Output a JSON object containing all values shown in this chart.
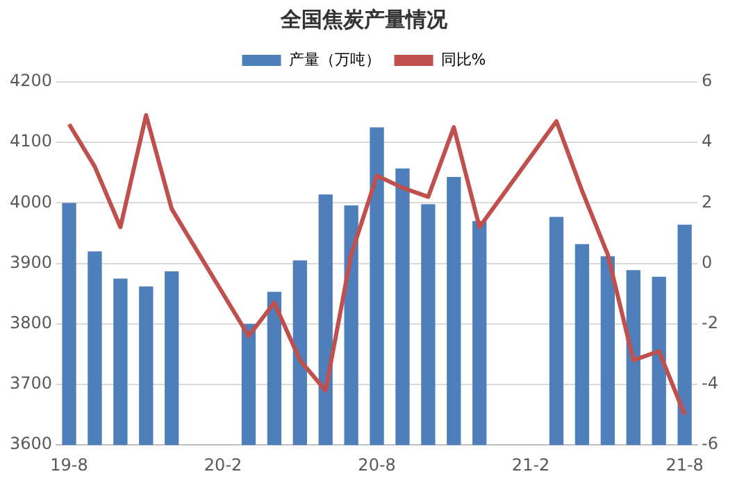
{
  "chart_data": {
    "type": "bar",
    "title": "全国焦炭产量情况",
    "categories": [
      "19-8",
      null,
      null,
      null,
      null,
      null,
      "20-2",
      null,
      null,
      null,
      null,
      null,
      "20-8",
      null,
      null,
      null,
      null,
      null,
      "21-2",
      null,
      null,
      null,
      null,
      null,
      "21-8"
    ],
    "series": [
      {
        "name": "产量（万吨）",
        "color": "#4f7fba",
        "values": [
          4000,
          3920,
          3875,
          3862,
          3887,
          null,
          null,
          3800,
          3853,
          3905,
          4014,
          3996,
          4125,
          4057,
          3998,
          4043,
          3970,
          null,
          null,
          3977,
          3932,
          3912,
          3889,
          3878,
          3964
        ]
      },
      {
        "name": "同比%",
        "type": "line",
        "axis": "y2",
        "color": "#c0504d",
        "values": [
          4.6,
          3.2,
          1.2,
          4.9,
          1.8,
          null,
          null,
          -2.4,
          -1.3,
          -3.2,
          -4.2,
          0.3,
          2.9,
          2.5,
          2.2,
          4.5,
          1.2,
          null,
          null,
          4.7,
          2.4,
          0.3,
          -3.2,
          -2.9,
          -5.0
        ]
      }
    ],
    "ylim": [
      3600,
      4200
    ],
    "yticks": [
      3600,
      3700,
      3800,
      3900,
      4000,
      4100,
      4200
    ],
    "y2lim": [
      -6,
      6
    ],
    "y2ticks": [
      -6,
      -4,
      -2,
      0,
      2,
      4,
      6
    ],
    "grid": "y",
    "legend": "top",
    "marker": "none"
  }
}
